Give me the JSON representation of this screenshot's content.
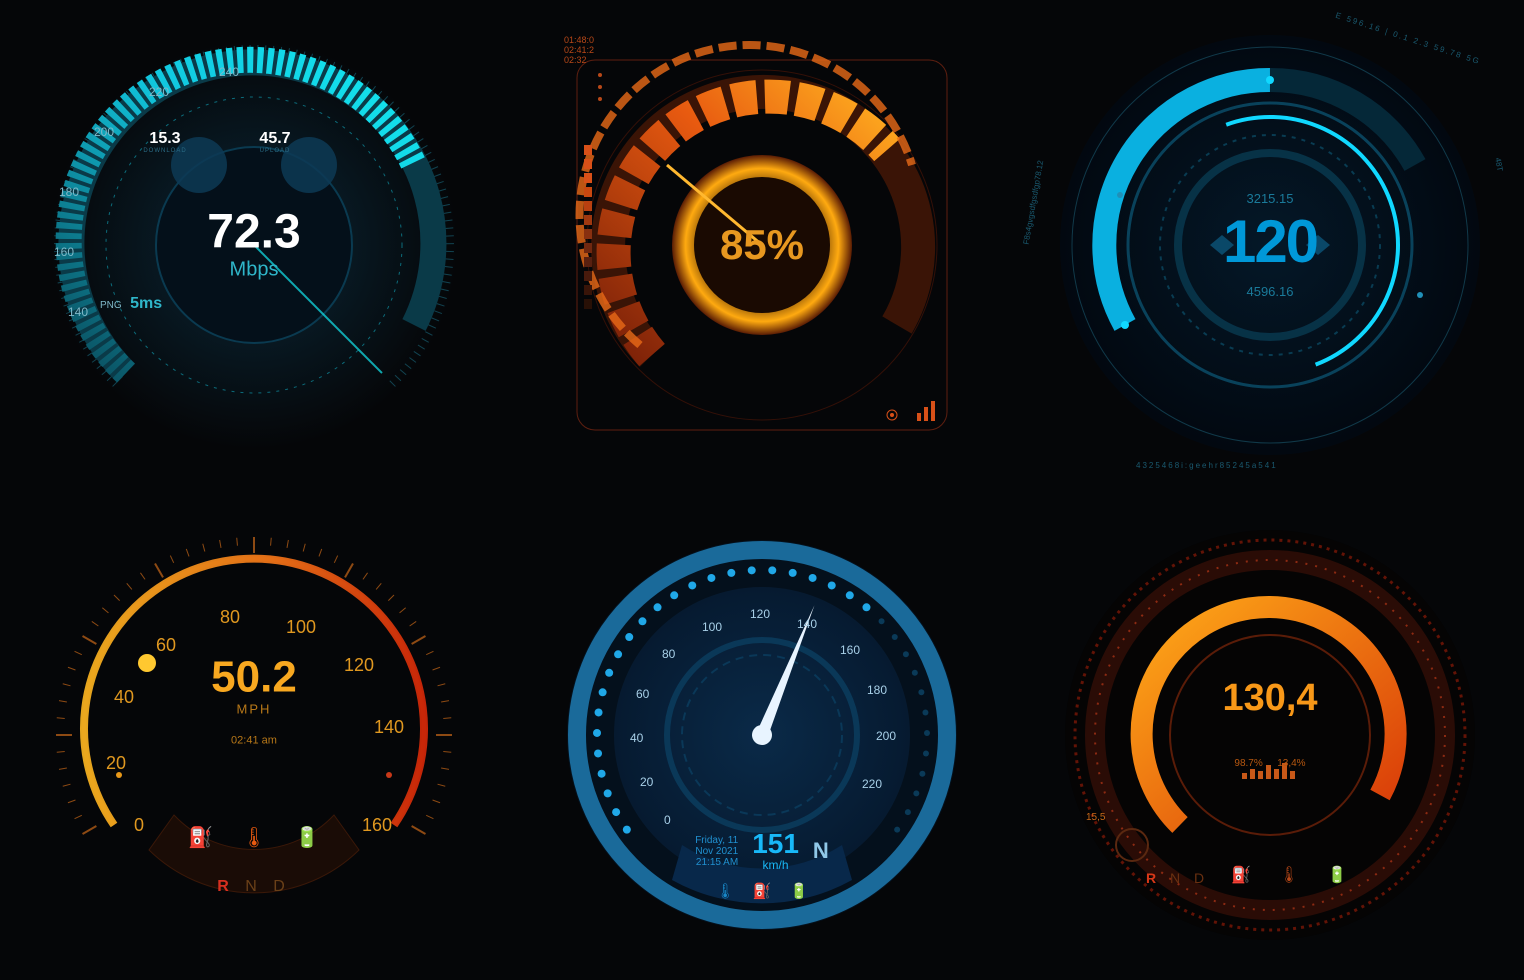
{
  "background": "#050608",
  "gauge1": {
    "type": "radial-speedtest",
    "value": "72.3",
    "unit": "Mbps",
    "download": {
      "value": "15.3",
      "label": "DOWNLOAD"
    },
    "upload": {
      "value": "45.7",
      "label": "UPLOAD"
    },
    "ping_label": "PNG",
    "ping_value": "5ms",
    "scale": [
      "140",
      "160",
      "180",
      "200",
      "220",
      "240"
    ],
    "colors": {
      "value": "#ffffff",
      "unit": "#2fb6c9",
      "arc_cold": "#0a4a5a",
      "arc_hot": "#11d8e8",
      "ticks": "#1a6b80",
      "center_bg": "#081520",
      "bubble_bg": "#0d3a55",
      "bubble_txt": "#ffffff",
      "bubble_sub": "#2a6b85",
      "ping": "#2fb6c9",
      "scale_txt": "#7fb8c8",
      "glow": "#14c8e0"
    },
    "value_fontsize": 48,
    "unit_fontsize": 20,
    "bubble_fontsize": 16,
    "ping_fontsize": 14,
    "scale_fontsize": 12
  },
  "gauge2": {
    "type": "radial-percent",
    "value": "85%",
    "legend": [
      "01:48:0",
      "02:41:2",
      "02:32"
    ],
    "colors": {
      "frame": "#b83818",
      "corner": "#c94820",
      "arc_low": "#7a2008",
      "arc_mid": "#e85a10",
      "arc_hi": "#ffb020",
      "inner_glow": "#ffaa10",
      "value": "#e89820",
      "bars": "#d85018",
      "bg": "#0a0604",
      "legend": "#b84818"
    },
    "value_fontsize": 42,
    "legend_fontsize": 9
  },
  "gauge3": {
    "type": "radial-hud",
    "value": "120",
    "top_value": "3215.15",
    "bottom_value": "4596.16",
    "perimeter_text_top": "E 596.16 | 0.1 2.3 59.78 5G",
    "perimeter_text_right": "48T",
    "perimeter_text_bottom": "4325468i:geehr85245a541",
    "perimeter_text_left": "F8s4gvgsdfgsdfgp78.12",
    "colors": {
      "value": "#0098d8",
      "sub": "#1a7a9a",
      "ring_thick": "#0ab0e0",
      "ring_thin": "#0d5a78",
      "hilite": "#10d8ff",
      "dots": "#2090b8",
      "perimeter": "#1a5a70",
      "bg": "#020810"
    },
    "value_fontsize": 60,
    "sub_fontsize": 13,
    "perimeter_fontsize": 8
  },
  "gauge4": {
    "type": "speedometer-mph",
    "value": "50.2",
    "unit": "MPH",
    "time": "02:41 am",
    "gear": "R N D",
    "scale": [
      "0",
      "20",
      "40",
      "60",
      "80",
      "100",
      "120",
      "140",
      "160"
    ],
    "icons": [
      "fuel",
      "temp",
      "battery"
    ],
    "colors": {
      "value": "#f8a820",
      "unit": "#b87818",
      "time": "#b87818",
      "gear_r": "#d83020",
      "gear_nd": "#6a4018",
      "scale_txt": "#e09820",
      "arc_cold": "#ffb820",
      "arc_hot": "#d82808",
      "needle_dot": "#ffc830",
      "icons": "#e85a10",
      "ticks": "#c86818",
      "rim_dark": "#3a1808"
    },
    "value_fontsize": 44,
    "unit_fontsize": 13,
    "scale_fontsize": 18,
    "gear_fontsize": 16,
    "time_fontsize": 11
  },
  "gauge5": {
    "type": "speedometer-kmh-needle",
    "value": "151",
    "unit": "km/h",
    "date_line1": "Friday, 11",
    "date_line2": "Nov 2021",
    "date_line3": "21:15 AM",
    "gear": "N",
    "scale": [
      "0",
      "20",
      "40",
      "60",
      "80",
      "100",
      "120",
      "140",
      "160",
      "180",
      "200",
      "220"
    ],
    "needle_angle_deg": 22,
    "icons": [
      "temp",
      "fuel",
      "battery"
    ],
    "colors": {
      "rim": "#1a6a9a",
      "face": "#0a2a48",
      "face_inner": "#082038",
      "scale": "#a8d0e8",
      "needle": "#e8f4ff",
      "dots_on": "#20a8e8",
      "dots_off": "#0a3a58",
      "panel": "#08284a",
      "value": "#18b8f8",
      "date": "#2090d0",
      "gear": "#90c8e8",
      "icons": "#1888c8"
    },
    "value_fontsize": 28,
    "unit_fontsize": 12,
    "date_fontsize": 10,
    "scale_fontsize": 12,
    "gear_fontsize": 22
  },
  "gauge6": {
    "type": "radial-dark-orange",
    "value": "130,4",
    "sub_left": "98.7%",
    "sub_right": "13,4%",
    "side_badge": "15,5",
    "gear": "R N D",
    "icons": [
      "fuel",
      "temp",
      "battery"
    ],
    "bars": [
      3,
      5,
      4,
      6,
      5,
      7,
      4
    ],
    "colors": {
      "value": "#f89818",
      "sub": "#b85810",
      "arc_hi": "#ffaa18",
      "arc_lo": "#d83808",
      "ring_outer": "#7a1808",
      "ring_dark": "#2a0c06",
      "ticks": "#b83818",
      "bars": "#c85818",
      "gear_r": "#d83818",
      "gear_nd": "#6a3010",
      "icons": "#b84818",
      "badge": "#5a2810",
      "bg": "#050404"
    },
    "value_fontsize": 38,
    "sub_fontsize": 10,
    "gear_fontsize": 14,
    "badge_fontsize": 10
  }
}
